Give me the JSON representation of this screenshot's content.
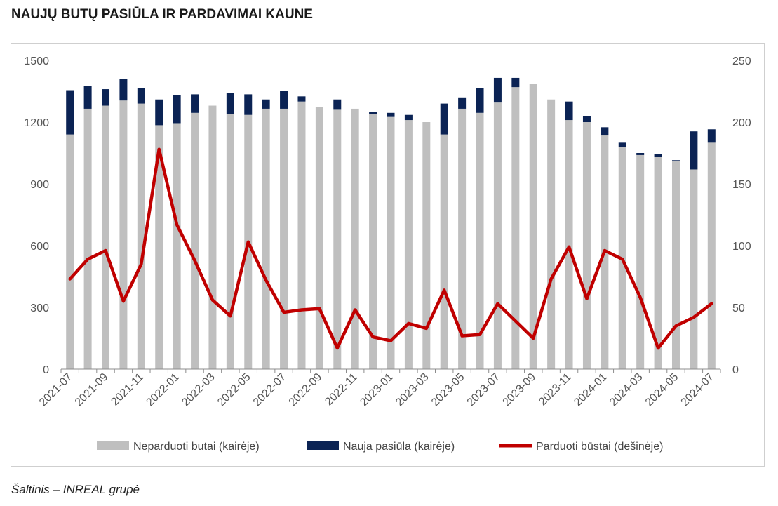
{
  "title": "NAUJŲ BUTŲ PASIŪLA IR PARDAVIMAI KAUNE",
  "source": "Šaltinis – INREAL grupė",
  "colors": {
    "unsold": "#bfbfbf",
    "new_supply": "#0b2354",
    "sold": "#c00000"
  },
  "chart_data": {
    "type": "bar",
    "stacked": true,
    "secondary_axis_series": [
      "Parduoti būstai (dešinėje)"
    ],
    "x": [
      "2021-07",
      "2021-08",
      "2021-09",
      "2021-10",
      "2021-11",
      "2021-12",
      "2022-01",
      "2022-02",
      "2022-03",
      "2022-04",
      "2022-05",
      "2022-06",
      "2022-07",
      "2022-08",
      "2022-09",
      "2022-10",
      "2022-11",
      "2022-12",
      "2023-01",
      "2023-02",
      "2023-03",
      "2023-04",
      "2023-05",
      "2023-06",
      "2023-07",
      "2023-08",
      "2023-09",
      "2023-10",
      "2023-11",
      "2023-12",
      "2024-01",
      "2024-02",
      "2024-03",
      "2024-04",
      "2024-05",
      "2024-06",
      "2024-07"
    ],
    "x_tick_labels": [
      "2021-07",
      "2021-09",
      "2021-11",
      "2022-01",
      "2022-03",
      "2022-05",
      "2022-07",
      "2022-09",
      "2022-11",
      "2023-01",
      "2023-03",
      "2023-05",
      "2023-07",
      "2023-09",
      "2023-11",
      "2024-01",
      "2024-03",
      "2024-05",
      "2024-07"
    ],
    "y_left": {
      "lim": [
        0,
        1500
      ],
      "ticks": [
        0,
        300,
        600,
        900,
        1200,
        1500
      ]
    },
    "y_right": {
      "lim": [
        0,
        250
      ],
      "ticks": [
        0,
        50,
        100,
        150,
        200,
        250
      ]
    },
    "series": [
      {
        "name": "Neparduoti butai (kairėje)",
        "type": "bar",
        "axis": "left",
        "values": [
          1140,
          1265,
          1280,
          1305,
          1290,
          1185,
          1195,
          1245,
          1280,
          1240,
          1235,
          1265,
          1265,
          1300,
          1275,
          1260,
          1265,
          1240,
          1225,
          1210,
          1200,
          1140,
          1265,
          1245,
          1295,
          1370,
          1385,
          1310,
          1210,
          1200,
          1135,
          1080,
          1040,
          1030,
          1010,
          970,
          1100
        ]
      },
      {
        "name": "Nauja pasiūla (kairėje)",
        "type": "bar",
        "axis": "left",
        "values": [
          215,
          110,
          80,
          105,
          75,
          125,
          135,
          90,
          0,
          100,
          100,
          45,
          85,
          25,
          0,
          50,
          0,
          10,
          20,
          25,
          0,
          150,
          55,
          120,
          120,
          45,
          0,
          0,
          90,
          30,
          40,
          20,
          10,
          15,
          5,
          185,
          65
        ]
      },
      {
        "name": "Parduoti būstai (dešinėje)",
        "type": "line",
        "axis": "right",
        "values": [
          73,
          89,
          96,
          55,
          85,
          178,
          117,
          88,
          56,
          43,
          103,
          72,
          46,
          48,
          49,
          17,
          48,
          26,
          23,
          37,
          33,
          64,
          27,
          28,
          53,
          39,
          25,
          73,
          99,
          57,
          96,
          89,
          58,
          17,
          35,
          42,
          53
        ]
      }
    ],
    "legend_position": "bottom",
    "grid": false
  }
}
